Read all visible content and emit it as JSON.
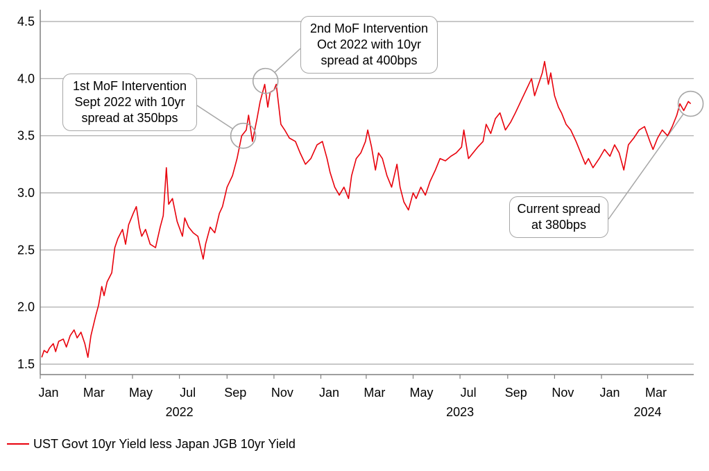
{
  "chart_data": {
    "type": "line",
    "y_ticks": [
      "1.5",
      "2.0",
      "2.5",
      "3.0",
      "3.5",
      "4.0",
      "4.5"
    ],
    "ylim": [
      1.5,
      4.5
    ],
    "x_month_labels": [
      "Jan",
      "Mar",
      "May",
      "Jul",
      "Sep",
      "Nov",
      "Jan",
      "Mar",
      "May",
      "Jul",
      "Sep",
      "Nov",
      "Jan",
      "Mar"
    ],
    "x_year_labels": [
      "2022",
      "2023",
      "2024"
    ],
    "grid": "horizontal",
    "legend_position": "bottom-left",
    "series": [
      {
        "name": "UST Govt 10yr Yield less Japan JGB 10yr Yield",
        "color": "#e8000b",
        "points": [
          [
            "2022-01-03",
            1.56
          ],
          [
            "2022-01-06",
            1.62
          ],
          [
            "2022-01-10",
            1.6
          ],
          [
            "2022-01-13",
            1.64
          ],
          [
            "2022-01-18",
            1.68
          ],
          [
            "2022-01-21",
            1.61
          ],
          [
            "2022-01-25",
            1.7
          ],
          [
            "2022-01-31",
            1.72
          ],
          [
            "2022-02-04",
            1.65
          ],
          [
            "2022-02-09",
            1.75
          ],
          [
            "2022-02-14",
            1.8
          ],
          [
            "2022-02-18",
            1.73
          ],
          [
            "2022-02-23",
            1.78
          ],
          [
            "2022-02-28",
            1.68
          ],
          [
            "2022-03-04",
            1.56
          ],
          [
            "2022-03-08",
            1.75
          ],
          [
            "2022-03-14",
            1.92
          ],
          [
            "2022-03-18",
            2.02
          ],
          [
            "2022-03-22",
            2.18
          ],
          [
            "2022-03-25",
            2.1
          ],
          [
            "2022-03-29",
            2.22
          ],
          [
            "2022-04-04",
            2.3
          ],
          [
            "2022-04-08",
            2.52
          ],
          [
            "2022-04-12",
            2.6
          ],
          [
            "2022-04-18",
            2.68
          ],
          [
            "2022-04-22",
            2.55
          ],
          [
            "2022-04-26",
            2.72
          ],
          [
            "2022-05-02",
            2.82
          ],
          [
            "2022-05-06",
            2.88
          ],
          [
            "2022-05-10",
            2.7
          ],
          [
            "2022-05-13",
            2.62
          ],
          [
            "2022-05-18",
            2.68
          ],
          [
            "2022-05-24",
            2.55
          ],
          [
            "2022-05-31",
            2.52
          ],
          [
            "2022-06-06",
            2.7
          ],
          [
            "2022-06-10",
            2.8
          ],
          [
            "2022-06-14",
            3.22
          ],
          [
            "2022-06-17",
            2.9
          ],
          [
            "2022-06-22",
            2.95
          ],
          [
            "2022-06-28",
            2.75
          ],
          [
            "2022-07-05",
            2.62
          ],
          [
            "2022-07-08",
            2.78
          ],
          [
            "2022-07-13",
            2.7
          ],
          [
            "2022-07-19",
            2.65
          ],
          [
            "2022-07-25",
            2.62
          ],
          [
            "2022-08-01",
            2.42
          ],
          [
            "2022-08-04",
            2.55
          ],
          [
            "2022-08-10",
            2.7
          ],
          [
            "2022-08-16",
            2.65
          ],
          [
            "2022-08-22",
            2.82
          ],
          [
            "2022-08-26",
            2.88
          ],
          [
            "2022-09-01",
            3.05
          ],
          [
            "2022-09-08",
            3.15
          ],
          [
            "2022-09-14",
            3.3
          ],
          [
            "2022-09-20",
            3.5
          ],
          [
            "2022-09-26",
            3.55
          ],
          [
            "2022-09-29",
            3.68
          ],
          [
            "2022-10-04",
            3.45
          ],
          [
            "2022-10-10",
            3.65
          ],
          [
            "2022-10-14",
            3.8
          ],
          [
            "2022-10-20",
            3.95
          ],
          [
            "2022-10-24",
            3.75
          ],
          [
            "2022-10-27",
            3.88
          ],
          [
            "2022-11-01",
            3.9
          ],
          [
            "2022-11-04",
            3.95
          ],
          [
            "2022-11-10",
            3.6
          ],
          [
            "2022-11-15",
            3.55
          ],
          [
            "2022-11-21",
            3.48
          ],
          [
            "2022-11-29",
            3.45
          ],
          [
            "2022-12-05",
            3.35
          ],
          [
            "2022-12-12",
            3.25
          ],
          [
            "2022-12-19",
            3.3
          ],
          [
            "2022-12-27",
            3.42
          ],
          [
            "2023-01-03",
            3.45
          ],
          [
            "2023-01-09",
            3.3
          ],
          [
            "2023-01-13",
            3.18
          ],
          [
            "2023-01-19",
            3.05
          ],
          [
            "2023-01-25",
            2.98
          ],
          [
            "2023-01-31",
            3.05
          ],
          [
            "2023-02-06",
            2.95
          ],
          [
            "2023-02-10",
            3.15
          ],
          [
            "2023-02-16",
            3.3
          ],
          [
            "2023-02-22",
            3.35
          ],
          [
            "2023-02-28",
            3.45
          ],
          [
            "2023-03-03",
            3.55
          ],
          [
            "2023-03-08",
            3.4
          ],
          [
            "2023-03-13",
            3.2
          ],
          [
            "2023-03-17",
            3.35
          ],
          [
            "2023-03-22",
            3.3
          ],
          [
            "2023-03-28",
            3.15
          ],
          [
            "2023-04-03",
            3.05
          ],
          [
            "2023-04-10",
            3.25
          ],
          [
            "2023-04-14",
            3.05
          ],
          [
            "2023-04-19",
            2.92
          ],
          [
            "2023-04-25",
            2.85
          ],
          [
            "2023-05-01",
            3.0
          ],
          [
            "2023-05-05",
            2.95
          ],
          [
            "2023-05-11",
            3.05
          ],
          [
            "2023-05-17",
            2.98
          ],
          [
            "2023-05-23",
            3.1
          ],
          [
            "2023-05-30",
            3.2
          ],
          [
            "2023-06-05",
            3.3
          ],
          [
            "2023-06-12",
            3.28
          ],
          [
            "2023-06-19",
            3.32
          ],
          [
            "2023-06-26",
            3.35
          ],
          [
            "2023-07-03",
            3.4
          ],
          [
            "2023-07-06",
            3.55
          ],
          [
            "2023-07-12",
            3.3
          ],
          [
            "2023-07-18",
            3.35
          ],
          [
            "2023-07-24",
            3.4
          ],
          [
            "2023-07-31",
            3.45
          ],
          [
            "2023-08-04",
            3.6
          ],
          [
            "2023-08-10",
            3.52
          ],
          [
            "2023-08-16",
            3.65
          ],
          [
            "2023-08-22",
            3.7
          ],
          [
            "2023-08-29",
            3.55
          ],
          [
            "2023-09-05",
            3.62
          ],
          [
            "2023-09-11",
            3.7
          ],
          [
            "2023-09-18",
            3.8
          ],
          [
            "2023-09-25",
            3.9
          ],
          [
            "2023-10-02",
            4.0
          ],
          [
            "2023-10-06",
            3.85
          ],
          [
            "2023-10-11",
            3.95
          ],
          [
            "2023-10-16",
            4.05
          ],
          [
            "2023-10-19",
            4.15
          ],
          [
            "2023-10-24",
            3.95
          ],
          [
            "2023-10-27",
            4.05
          ],
          [
            "2023-11-01",
            3.85
          ],
          [
            "2023-11-06",
            3.75
          ],
          [
            "2023-11-10",
            3.7
          ],
          [
            "2023-11-16",
            3.6
          ],
          [
            "2023-11-22",
            3.55
          ],
          [
            "2023-11-29",
            3.45
          ],
          [
            "2023-12-05",
            3.35
          ],
          [
            "2023-12-11",
            3.25
          ],
          [
            "2023-12-15",
            3.3
          ],
          [
            "2023-12-21",
            3.22
          ],
          [
            "2023-12-29",
            3.3
          ],
          [
            "2024-01-05",
            3.38
          ],
          [
            "2024-01-12",
            3.32
          ],
          [
            "2024-01-18",
            3.42
          ],
          [
            "2024-01-24",
            3.35
          ],
          [
            "2024-01-30",
            3.2
          ],
          [
            "2024-02-05",
            3.42
          ],
          [
            "2024-02-12",
            3.48
          ],
          [
            "2024-02-19",
            3.55
          ],
          [
            "2024-02-26",
            3.58
          ],
          [
            "2024-03-04",
            3.45
          ],
          [
            "2024-03-08",
            3.38
          ],
          [
            "2024-03-14",
            3.48
          ],
          [
            "2024-03-20",
            3.55
          ],
          [
            "2024-03-27",
            3.5
          ],
          [
            "2024-04-02",
            3.58
          ],
          [
            "2024-04-08",
            3.68
          ],
          [
            "2024-04-12",
            3.78
          ],
          [
            "2024-04-17",
            3.72
          ],
          [
            "2024-04-23",
            3.8
          ],
          [
            "2024-04-26",
            3.78
          ]
        ]
      }
    ],
    "annotations": [
      {
        "id": "mof1",
        "lines": [
          "1st MoF Intervention",
          "Sept 2022 with 10yr",
          "spread at 350bps"
        ],
        "date": "2022-09-22",
        "value": 3.5
      },
      {
        "id": "mof2",
        "lines": [
          "2nd MoF Intervention",
          "Oct 2022 with 10yr",
          "spread at 400bps"
        ],
        "date": "2022-10-21",
        "value": 3.98
      },
      {
        "id": "current",
        "lines": [
          "Current spread",
          "at 380bps"
        ],
        "date": "2024-04-26",
        "value": 3.78
      }
    ]
  }
}
